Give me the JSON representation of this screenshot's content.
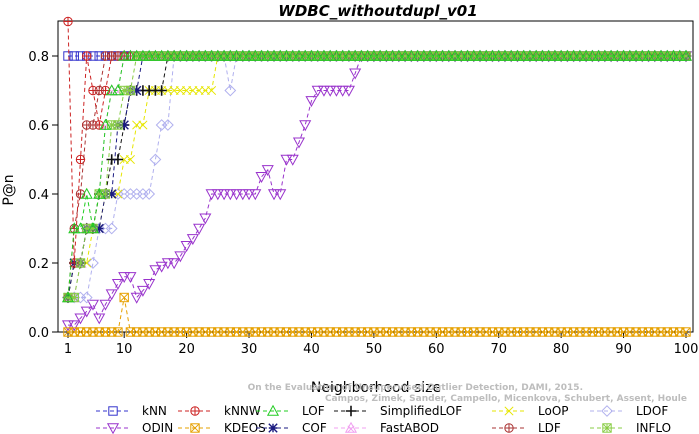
{
  "chart_data": {
    "type": "line",
    "title": "WDBC_withoutdupl_v01",
    "xlabel": "Neighborhood size",
    "ylabel": "P@n",
    "xlim": [
      1,
      100
    ],
    "ylim": [
      0,
      0.9
    ],
    "xticks": [
      1,
      10,
      20,
      30,
      40,
      50,
      60,
      70,
      80,
      90,
      100
    ],
    "yticks": [
      0.0,
      0.2,
      0.4,
      0.6,
      0.8
    ],
    "grid": false,
    "legend_position": "bottom",
    "credit_lines": [
      "Campos, Zimek, Sander, Campello, Micenkova, Schubert, Assent, Houle",
      "On the Evaluation of Unsupervised Outlier Detection, DAMI, 2015."
    ],
    "series": [
      {
        "name": "kNN",
        "color": "#3333cc",
        "marker": "square",
        "points": [
          [
            1,
            0.8
          ],
          [
            100,
            0.8
          ]
        ]
      },
      {
        "name": "kNNW",
        "color": "#cc2222",
        "marker": "circle-plus",
        "points": [
          [
            1,
            0.9
          ],
          [
            2,
            0.2
          ],
          [
            3,
            0.5
          ],
          [
            4,
            0.8
          ],
          [
            5,
            0.7
          ],
          [
            6,
            0.6
          ],
          [
            7,
            0.7
          ],
          [
            8,
            0.8
          ],
          [
            100,
            0.8
          ]
        ]
      },
      {
        "name": "LOF",
        "color": "#22cc22",
        "marker": "triangle-up",
        "points": [
          [
            1,
            0.1
          ],
          [
            2,
            0.3
          ],
          [
            3,
            0.3
          ],
          [
            4,
            0.4
          ],
          [
            5,
            0.3
          ],
          [
            6,
            0.4
          ],
          [
            7,
            0.6
          ],
          [
            8,
            0.7
          ],
          [
            9,
            0.7
          ],
          [
            10,
            0.8
          ],
          [
            100,
            0.8
          ]
        ]
      },
      {
        "name": "SimplifiedLOF",
        "color": "#111111",
        "marker": "plus",
        "points": [
          [
            1,
            0.1
          ],
          [
            2,
            0.2
          ],
          [
            3,
            0.2
          ],
          [
            4,
            0.3
          ],
          [
            5,
            0.3
          ],
          [
            6,
            0.4
          ],
          [
            7,
            0.4
          ],
          [
            8,
            0.5
          ],
          [
            9,
            0.5
          ],
          [
            10,
            0.6
          ],
          [
            11,
            0.7
          ],
          [
            12,
            0.7
          ],
          [
            13,
            0.7
          ],
          [
            14,
            0.7
          ],
          [
            15,
            0.7
          ],
          [
            16,
            0.7
          ],
          [
            17,
            0.8
          ],
          [
            100,
            0.8
          ]
        ]
      },
      {
        "name": "LoOP",
        "color": "#e6e600",
        "marker": "x",
        "points": [
          [
            1,
            0.1
          ],
          [
            2,
            0.2
          ],
          [
            3,
            0.2
          ],
          [
            4,
            0.2
          ],
          [
            5,
            0.3
          ],
          [
            6,
            0.3
          ],
          [
            7,
            0.4
          ],
          [
            8,
            0.4
          ],
          [
            9,
            0.4
          ],
          [
            10,
            0.5
          ],
          [
            11,
            0.5
          ],
          [
            12,
            0.6
          ],
          [
            13,
            0.6
          ],
          [
            14,
            0.7
          ],
          [
            15,
            0.7
          ],
          [
            16,
            0.7
          ],
          [
            17,
            0.7
          ],
          [
            18,
            0.7
          ],
          [
            19,
            0.7
          ],
          [
            20,
            0.7
          ],
          [
            21,
            0.7
          ],
          [
            22,
            0.7
          ],
          [
            23,
            0.7
          ],
          [
            24,
            0.7
          ],
          [
            25,
            0.8
          ],
          [
            100,
            0.8
          ]
        ]
      },
      {
        "name": "LDOF",
        "color": "#b0b0ee",
        "marker": "diamond",
        "points": [
          [
            1,
            0.1
          ],
          [
            2,
            0.1
          ],
          [
            3,
            0.1
          ],
          [
            4,
            0.1
          ],
          [
            5,
            0.2
          ],
          [
            6,
            0.3
          ],
          [
            7,
            0.3
          ],
          [
            8,
            0.3
          ],
          [
            9,
            0.4
          ],
          [
            10,
            0.4
          ],
          [
            11,
            0.4
          ],
          [
            12,
            0.4
          ],
          [
            13,
            0.4
          ],
          [
            14,
            0.4
          ],
          [
            15,
            0.5
          ],
          [
            16,
            0.6
          ],
          [
            17,
            0.6
          ],
          [
            18,
            0.8
          ],
          [
            22,
            0.8
          ],
          [
            27,
            0.7
          ],
          [
            28,
            0.8
          ],
          [
            100,
            0.8
          ]
        ]
      },
      {
        "name": "ODIN",
        "color": "#9933cc",
        "marker": "triangle-down",
        "points": [
          [
            1,
            0.02
          ],
          [
            2,
            0.02
          ],
          [
            3,
            0.04
          ],
          [
            4,
            0.06
          ],
          [
            5,
            0.08
          ],
          [
            6,
            0.04
          ],
          [
            7,
            0.08
          ],
          [
            8,
            0.11
          ],
          [
            9,
            0.14
          ],
          [
            10,
            0.16
          ],
          [
            11,
            0.16
          ],
          [
            12,
            0.1
          ],
          [
            13,
            0.12
          ],
          [
            14,
            0.14
          ],
          [
            15,
            0.18
          ],
          [
            16,
            0.19
          ],
          [
            17,
            0.2
          ],
          [
            18,
            0.2
          ],
          [
            19,
            0.22
          ],
          [
            20,
            0.25
          ],
          [
            21,
            0.27
          ],
          [
            22,
            0.3
          ],
          [
            23,
            0.33
          ],
          [
            24,
            0.4
          ],
          [
            25,
            0.4
          ],
          [
            26,
            0.4
          ],
          [
            27,
            0.4
          ],
          [
            28,
            0.4
          ],
          [
            29,
            0.4
          ],
          [
            30,
            0.4
          ],
          [
            31,
            0.4
          ],
          [
            32,
            0.45
          ],
          [
            33,
            0.47
          ],
          [
            34,
            0.4
          ],
          [
            35,
            0.4
          ],
          [
            36,
            0.5
          ],
          [
            37,
            0.5
          ],
          [
            38,
            0.55
          ],
          [
            39,
            0.6
          ],
          [
            40,
            0.67
          ],
          [
            41,
            0.7
          ],
          [
            42,
            0.7
          ],
          [
            43,
            0.7
          ],
          [
            44,
            0.7
          ],
          [
            45,
            0.7
          ],
          [
            46,
            0.7
          ],
          [
            47,
            0.75
          ],
          [
            48,
            0.8
          ],
          [
            100,
            0.8
          ]
        ]
      },
      {
        "name": "KDEOS",
        "color": "#e6a000",
        "marker": "square-x",
        "points": [
          [
            1,
            0.0
          ],
          [
            9,
            0.0
          ],
          [
            10,
            0.1
          ],
          [
            11,
            0.0
          ],
          [
            100,
            0.0
          ]
        ]
      },
      {
        "name": "COF",
        "color": "#1a1a80",
        "marker": "asterisk",
        "points": [
          [
            1,
            0.1
          ],
          [
            2,
            0.2
          ],
          [
            3,
            0.2
          ],
          [
            4,
            0.3
          ],
          [
            5,
            0.3
          ],
          [
            6,
            0.3
          ],
          [
            7,
            0.4
          ],
          [
            8,
            0.4
          ],
          [
            9,
            0.6
          ],
          [
            10,
            0.6
          ],
          [
            11,
            0.7
          ],
          [
            12,
            0.7
          ],
          [
            13,
            0.8
          ],
          [
            100,
            0.8
          ]
        ]
      },
      {
        "name": "FastABOD",
        "color": "#f0a0f0",
        "marker": "triangle-up-x",
        "points": [
          [
            1,
            0.1
          ],
          [
            2,
            0.1
          ],
          [
            3,
            0.2
          ],
          [
            4,
            0.3
          ],
          [
            5,
            0.3
          ],
          [
            6,
            0.4
          ],
          [
            7,
            0.6
          ],
          [
            8,
            0.7
          ],
          [
            9,
            0.7
          ],
          [
            10,
            0.8
          ],
          [
            100,
            0.8
          ]
        ]
      },
      {
        "name": "LDF",
        "color": "#aa3333",
        "marker": "circle-plus",
        "points": [
          [
            1,
            0.1
          ],
          [
            2,
            0.3
          ],
          [
            3,
            0.4
          ],
          [
            4,
            0.6
          ],
          [
            5,
            0.6
          ],
          [
            6,
            0.7
          ],
          [
            7,
            0.8
          ],
          [
            100,
            0.8
          ]
        ]
      },
      {
        "name": "INFLO",
        "color": "#88cc44",
        "marker": "square-cross",
        "points": [
          [
            1,
            0.1
          ],
          [
            2,
            0.1
          ],
          [
            3,
            0.2
          ],
          [
            4,
            0.3
          ],
          [
            5,
            0.3
          ],
          [
            6,
            0.4
          ],
          [
            7,
            0.4
          ],
          [
            8,
            0.6
          ],
          [
            9,
            0.6
          ],
          [
            10,
            0.7
          ],
          [
            11,
            0.7
          ],
          [
            12,
            0.8
          ],
          [
            100,
            0.8
          ]
        ]
      }
    ]
  }
}
